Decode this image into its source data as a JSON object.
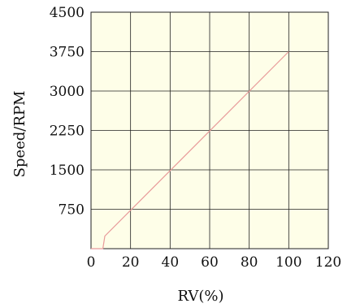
{
  "chart_data": {
    "type": "line",
    "title": "",
    "xlabel": "RV(%)",
    "ylabel": "Speed/RPM",
    "xlim": [
      0,
      120
    ],
    "ylim": [
      0,
      4500
    ],
    "x_ticks": [
      0,
      20,
      40,
      60,
      80,
      100,
      120
    ],
    "y_ticks": [
      750,
      1500,
      2250,
      3000,
      3750,
      4500
    ],
    "x_tick_labels": [
      "0",
      "20",
      "40",
      "60",
      "80",
      "100",
      "120"
    ],
    "y_tick_labels": [
      "750",
      "1500",
      "2250",
      "3000",
      "3750",
      "4500"
    ],
    "grid": true,
    "series": [
      {
        "x": [
          0,
          6,
          7,
          100
        ],
        "y": [
          0,
          0,
          240,
          3750
        ]
      }
    ],
    "colors": {
      "plot_background": "#fefee8",
      "grid": "#222222",
      "line": "#e89a9a"
    }
  }
}
